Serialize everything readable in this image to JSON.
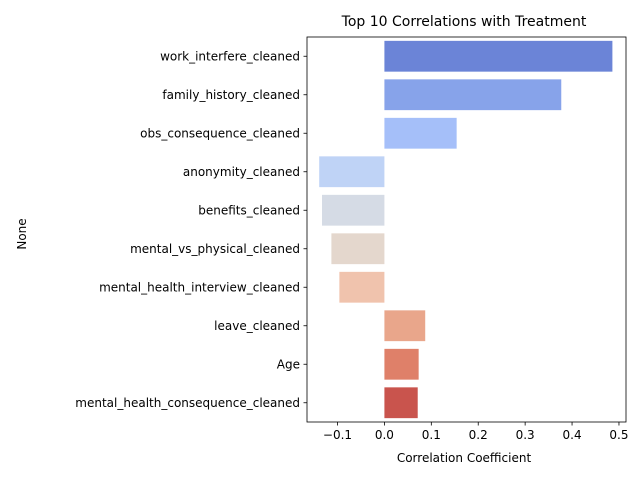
{
  "chart_data": {
    "type": "bar",
    "orientation": "horizontal",
    "title": "Top 10 Correlations with Treatment",
    "xlabel": "Correlation Coefficient",
    "ylabel": "None",
    "xlim": [
      -0.165,
      0.515
    ],
    "xticks": [
      -0.1,
      0.0,
      0.1,
      0.2,
      0.3,
      0.4,
      0.5
    ],
    "xtick_labels": [
      "−0.1",
      "0.0",
      "0.1",
      "0.2",
      "0.3",
      "0.4",
      "0.5"
    ],
    "grid": false,
    "categories": [
      "work_interfere_cleaned",
      "family_history_cleaned",
      "obs_consequence_cleaned",
      "anonymity_cleaned",
      "benefits_cleaned",
      "mental_vs_physical_cleaned",
      "mental_health_interview_cleaned",
      "leave_cleaned",
      "Age",
      "mental_health_consequence_cleaned"
    ],
    "values": [
      0.486,
      0.377,
      0.154,
      -0.139,
      -0.133,
      -0.113,
      -0.096,
      0.087,
      0.073,
      0.071
    ],
    "colors": [
      "#6b84d7",
      "#87a3ea",
      "#a5bff9",
      "#bfd3f6",
      "#d5dbe5",
      "#e4d7cd",
      "#f0c3ad",
      "#e9a68b",
      "#df8069",
      "#c9544d"
    ]
  }
}
